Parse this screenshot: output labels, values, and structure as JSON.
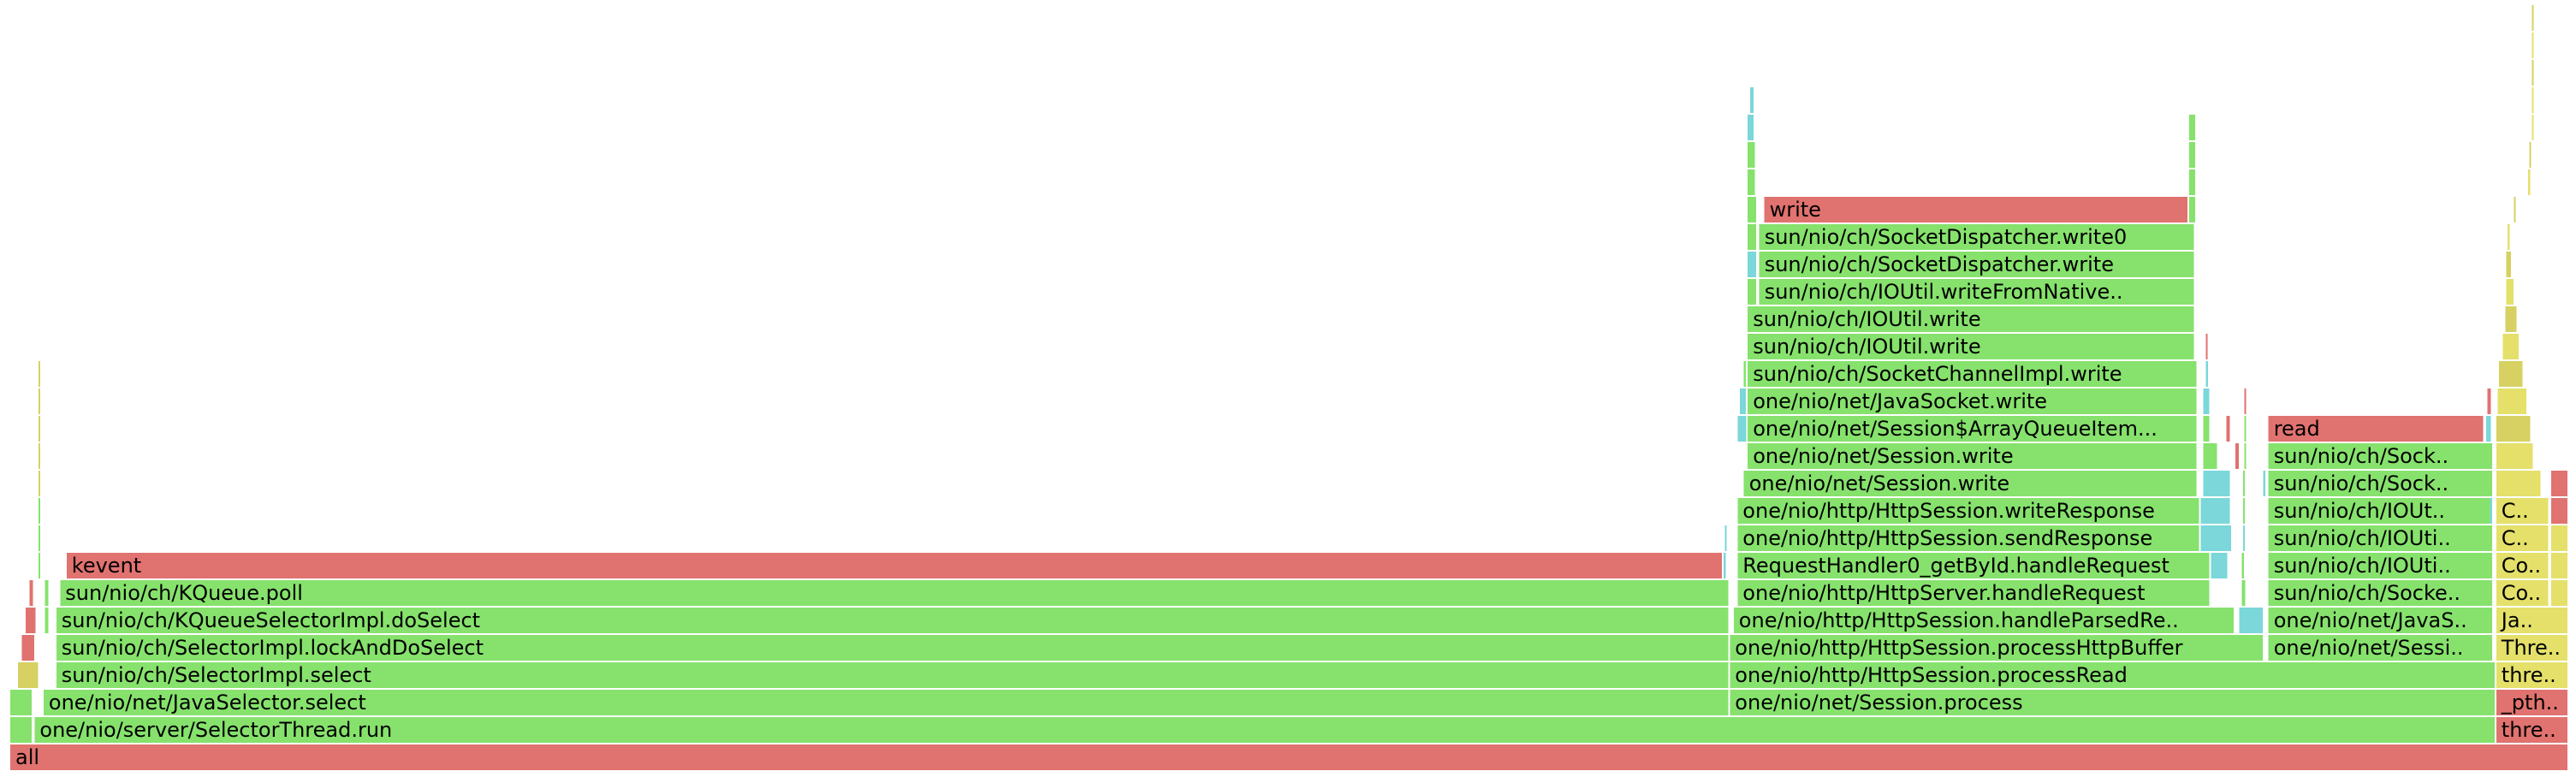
{
  "chart_data": {
    "type": "flamegraph",
    "units": "percent of total samples",
    "palette": {
      "native": "#e0726f",
      "java": "#86e26c",
      "inlined": "#8fe678",
      "kernel": "#7bd7d9",
      "c1": "#d6d162",
      "interpreted": "#e4e06a"
    },
    "frames": [
      {
        "name": "all",
        "depth": 0,
        "start": 0.0,
        "width": 100.0,
        "kind": "native"
      },
      {
        "name": "one/nio/server/SelectorThread.run",
        "depth": 1,
        "start": 0.95,
        "width": 96.2,
        "kind": "java"
      },
      {
        "name": "thre..",
        "depth": 1,
        "start": 97.15,
        "width": 2.85,
        "kind": "native"
      },
      {
        "name": "one/nio/net/JavaSelector.select",
        "depth": 2,
        "start": 1.3,
        "width": 65.9,
        "kind": "java"
      },
      {
        "name": "one/nio/net/Session.process",
        "depth": 2,
        "start": 67.2,
        "width": 29.95,
        "kind": "java"
      },
      {
        "name": "_pth..",
        "depth": 2,
        "start": 97.15,
        "width": 2.85,
        "kind": "native"
      },
      {
        "name": "sun/nio/ch/SelectorImpl.select",
        "depth": 3,
        "start": 1.8,
        "width": 65.4,
        "kind": "java"
      },
      {
        "name": "one/nio/http/HttpSession.processRead",
        "depth": 3,
        "start": 67.2,
        "width": 29.95,
        "kind": "java"
      },
      {
        "name": "thre..",
        "depth": 3,
        "start": 97.15,
        "width": 2.85,
        "kind": "interpreted"
      },
      {
        "name": "sun/nio/ch/SelectorImpl.lockAndDoSelect",
        "depth": 4,
        "start": 1.8,
        "width": 65.4,
        "kind": "java"
      },
      {
        "name": "one/nio/http/HttpSession.processHttpBuffer",
        "depth": 4,
        "start": 67.2,
        "width": 20.9,
        "kind": "java"
      },
      {
        "name": "one/nio/net/Sessi..",
        "depth": 4,
        "start": 88.25,
        "width": 8.8,
        "kind": "java"
      },
      {
        "name": "Thre..",
        "depth": 4,
        "start": 97.15,
        "width": 2.85,
        "kind": "interpreted"
      },
      {
        "name": "sun/nio/ch/KQueueSelectorImpl.doSelect",
        "depth": 5,
        "start": 1.8,
        "width": 65.4,
        "kind": "java"
      },
      {
        "name": "one/nio/http/HttpSession.handleParsedRe..",
        "depth": 5,
        "start": 67.35,
        "width": 19.6,
        "kind": "java"
      },
      {
        "name": "one/nio/net/JavaS..",
        "depth": 5,
        "start": 88.25,
        "width": 8.8,
        "kind": "java"
      },
      {
        "name": "Ja..",
        "depth": 5,
        "start": 97.15,
        "width": 2.85,
        "kind": "interpreted"
      },
      {
        "name": "sun/nio/ch/KQueue.poll",
        "depth": 6,
        "start": 1.95,
        "width": 65.1,
        "kind": "java"
      },
      {
        "name": "one/nio/http/HttpServer.handleRequest",
        "depth": 6,
        "start": 67.5,
        "width": 18.5,
        "kind": "java"
      },
      {
        "name": "sun/nio/ch/Socke..",
        "depth": 6,
        "start": 88.25,
        "width": 8.8,
        "kind": "java"
      },
      {
        "name": "Co..",
        "depth": 6,
        "start": 97.15,
        "width": 2.1,
        "kind": "interpreted"
      },
      {
        "name": "kevent",
        "depth": 7,
        "start": 2.2,
        "width": 64.75,
        "kind": "native"
      },
      {
        "name": "RequestHandler0_getById.handleRequest",
        "depth": 7,
        "start": 67.5,
        "width": 18.5,
        "kind": "java"
      },
      {
        "name": "sun/nio/ch/IOUti..",
        "depth": 7,
        "start": 88.25,
        "width": 8.8,
        "kind": "java"
      },
      {
        "name": "Co..",
        "depth": 7,
        "start": 97.15,
        "width": 2.1,
        "kind": "interpreted"
      },
      {
        "name": "one/nio/http/HttpSession.sendResponse",
        "depth": 8,
        "start": 67.5,
        "width": 18.1,
        "kind": "java"
      },
      {
        "name": "sun/nio/ch/IOUti..",
        "depth": 8,
        "start": 88.25,
        "width": 8.8,
        "kind": "java"
      },
      {
        "name": "C..",
        "depth": 8,
        "start": 97.15,
        "width": 2.1,
        "kind": "interpreted"
      },
      {
        "name": "one/nio/http/HttpSession.writeResponse",
        "depth": 9,
        "start": 67.5,
        "width": 18.1,
        "kind": "java"
      },
      {
        "name": "sun/nio/ch/IOUt..",
        "depth": 9,
        "start": 88.25,
        "width": 8.8,
        "kind": "java"
      },
      {
        "name": "C..",
        "depth": 9,
        "start": 97.15,
        "width": 2.1,
        "kind": "interpreted"
      },
      {
        "name": "one/nio/net/Session.write",
        "depth": 10,
        "start": 67.75,
        "width": 17.75,
        "kind": "java"
      },
      {
        "name": "sun/nio/ch/Sock..",
        "depth": 10,
        "start": 88.25,
        "width": 8.8,
        "kind": "java"
      },
      {
        "name": "one/nio/net/Session.write",
        "depth": 11,
        "start": 67.9,
        "width": 17.6,
        "kind": "java"
      },
      {
        "name": "sun/nio/ch/Sock..",
        "depth": 11,
        "start": 88.25,
        "width": 8.8,
        "kind": "java"
      },
      {
        "name": "one/nio/net/Session$ArrayQueueItem...",
        "depth": 12,
        "start": 67.9,
        "width": 17.6,
        "kind": "java"
      },
      {
        "name": "read",
        "depth": 12,
        "start": 88.25,
        "width": 8.45,
        "kind": "native"
      },
      {
        "name": "one/nio/net/JavaSocket.write",
        "depth": 13,
        "start": 67.9,
        "width": 17.6,
        "kind": "java"
      },
      {
        "name": "sun/nio/ch/SocketChannelImpl.write",
        "depth": 14,
        "start": 67.9,
        "width": 17.6,
        "kind": "java"
      },
      {
        "name": "sun/nio/ch/IOUtil.write",
        "depth": 15,
        "start": 67.9,
        "width": 17.5,
        "kind": "java"
      },
      {
        "name": "sun/nio/ch/IOUtil.write",
        "depth": 16,
        "start": 67.9,
        "width": 17.5,
        "kind": "java"
      },
      {
        "name": "sun/nio/ch/IOUtil.writeFromNative..",
        "depth": 17,
        "start": 68.35,
        "width": 17.05,
        "kind": "java"
      },
      {
        "name": "sun/nio/ch/SocketDispatcher.write",
        "depth": 18,
        "start": 68.35,
        "width": 17.05,
        "kind": "java"
      },
      {
        "name": "sun/nio/ch/SocketDispatcher.write0",
        "depth": 19,
        "start": 68.35,
        "width": 17.05,
        "kind": "java"
      },
      {
        "name": "write",
        "depth": 20,
        "start": 68.55,
        "width": 16.6,
        "kind": "native"
      },
      {
        "name": "",
        "depth": 1,
        "start": 0.0,
        "width": 0.9,
        "kind": "java"
      },
      {
        "name": "",
        "depth": 2,
        "start": 0.0,
        "width": 0.9,
        "kind": "java"
      },
      {
        "name": "",
        "depth": 3,
        "start": 0.3,
        "width": 0.85,
        "kind": "c1"
      },
      {
        "name": "",
        "depth": 4,
        "start": 0.45,
        "width": 0.55,
        "kind": "native"
      },
      {
        "name": "",
        "depth": 5,
        "start": 0.6,
        "width": 0.45,
        "kind": "native"
      },
      {
        "name": "",
        "depth": 6,
        "start": 0.75,
        "width": 0.2,
        "kind": "native"
      },
      {
        "name": "",
        "depth": 7,
        "start": 1.1,
        "width": 0.1,
        "kind": "java"
      },
      {
        "name": "",
        "depth": 8,
        "start": 1.1,
        "width": 0.1,
        "kind": "java"
      },
      {
        "name": "",
        "depth": 9,
        "start": 1.1,
        "width": 0.1,
        "kind": "java"
      },
      {
        "name": "",
        "depth": 10,
        "start": 1.1,
        "width": 0.1,
        "kind": "c1"
      },
      {
        "name": "",
        "depth": 11,
        "start": 1.1,
        "width": 0.1,
        "kind": "c1"
      },
      {
        "name": "",
        "depth": 12,
        "start": 1.1,
        "width": 0.08,
        "kind": "c1"
      },
      {
        "name": "",
        "depth": 13,
        "start": 1.1,
        "width": 0.08,
        "kind": "c1"
      },
      {
        "name": "",
        "depth": 14,
        "start": 1.1,
        "width": 0.06,
        "kind": "c1"
      },
      {
        "name": "",
        "depth": 6,
        "start": 1.35,
        "width": 0.2,
        "kind": "java"
      },
      {
        "name": "",
        "depth": 5,
        "start": 1.35,
        "width": 0.2,
        "kind": "java"
      },
      {
        "name": "",
        "depth": 7,
        "start": 66.95,
        "width": 0.15,
        "kind": "kernel"
      },
      {
        "name": "",
        "depth": 8,
        "start": 67.0,
        "width": 0.1,
        "kind": "kernel"
      },
      {
        "name": "",
        "depth": 6,
        "start": 66.95,
        "width": 0.25,
        "kind": "java"
      },
      {
        "name": "",
        "depth": 12,
        "start": 67.5,
        "width": 0.4,
        "kind": "kernel"
      },
      {
        "name": "",
        "depth": 13,
        "start": 67.6,
        "width": 0.3,
        "kind": "kernel"
      },
      {
        "name": "",
        "depth": 14,
        "start": 67.75,
        "width": 0.15,
        "kind": "java"
      },
      {
        "name": "",
        "depth": 15,
        "start": 67.9,
        "width": 0.0,
        "kind": "java"
      },
      {
        "name": "",
        "depth": 17,
        "start": 67.9,
        "width": 0.4,
        "kind": "java"
      },
      {
        "name": "",
        "depth": 18,
        "start": 67.9,
        "width": 0.4,
        "kind": "kernel"
      },
      {
        "name": "",
        "depth": 19,
        "start": 67.9,
        "width": 0.4,
        "kind": "java"
      },
      {
        "name": "",
        "depth": 20,
        "start": 67.9,
        "width": 0.4,
        "kind": "java"
      },
      {
        "name": "",
        "depth": 21,
        "start": 67.9,
        "width": 0.35,
        "kind": "java"
      },
      {
        "name": "",
        "depth": 22,
        "start": 67.9,
        "width": 0.35,
        "kind": "java"
      },
      {
        "name": "",
        "depth": 23,
        "start": 67.9,
        "width": 0.3,
        "kind": "kernel"
      },
      {
        "name": "",
        "depth": 24,
        "start": 68.0,
        "width": 0.2,
        "kind": "kernel"
      },
      {
        "name": "",
        "depth": 20,
        "start": 85.15,
        "width": 0.3,
        "kind": "java"
      },
      {
        "name": "",
        "depth": 21,
        "start": 85.15,
        "width": 0.3,
        "kind": "java"
      },
      {
        "name": "",
        "depth": 22,
        "start": 85.15,
        "width": 0.3,
        "kind": "java"
      },
      {
        "name": "",
        "depth": 23,
        "start": 85.15,
        "width": 0.3,
        "kind": "java"
      },
      {
        "name": "",
        "depth": 7,
        "start": 86.0,
        "width": 0.7,
        "kind": "kernel"
      },
      {
        "name": "",
        "depth": 8,
        "start": 85.6,
        "width": 1.25,
        "kind": "kernel"
      },
      {
        "name": "",
        "depth": 9,
        "start": 85.6,
        "width": 1.2,
        "kind": "kernel"
      },
      {
        "name": "",
        "depth": 10,
        "start": 85.7,
        "width": 1.1,
        "kind": "kernel"
      },
      {
        "name": "",
        "depth": 11,
        "start": 85.7,
        "width": 0.6,
        "kind": "java"
      },
      {
        "name": "",
        "depth": 12,
        "start": 85.7,
        "width": 0.3,
        "kind": "java"
      },
      {
        "name": "",
        "depth": 13,
        "start": 85.7,
        "width": 0.3,
        "kind": "kernel"
      },
      {
        "name": "",
        "depth": 14,
        "start": 85.8,
        "width": 0.15,
        "kind": "kernel"
      },
      {
        "name": "",
        "depth": 15,
        "start": 85.8,
        "width": 0.1,
        "kind": "native"
      },
      {
        "name": "",
        "depth": 12,
        "start": 86.6,
        "width": 0.2,
        "kind": "native"
      },
      {
        "name": "",
        "depth": 11,
        "start": 86.95,
        "width": 0.2,
        "kind": "native"
      },
      {
        "name": "",
        "depth": 5,
        "start": 87.1,
        "width": 1.0,
        "kind": "kernel"
      },
      {
        "name": "",
        "depth": 6,
        "start": 87.2,
        "width": 0.2,
        "kind": "java"
      },
      {
        "name": "",
        "depth": 7,
        "start": 87.2,
        "width": 0.15,
        "kind": "java"
      },
      {
        "name": "",
        "depth": 8,
        "start": 87.25,
        "width": 0.1,
        "kind": "kernel"
      },
      {
        "name": "",
        "depth": 9,
        "start": 87.25,
        "width": 0.1,
        "kind": "java"
      },
      {
        "name": "",
        "depth": 10,
        "start": 87.25,
        "width": 0.1,
        "kind": "java"
      },
      {
        "name": "",
        "depth": 11,
        "start": 87.3,
        "width": 0.08,
        "kind": "java"
      },
      {
        "name": "",
        "depth": 12,
        "start": 87.3,
        "width": 0.08,
        "kind": "java"
      },
      {
        "name": "",
        "depth": 13,
        "start": 87.3,
        "width": 0.08,
        "kind": "native"
      },
      {
        "name": "",
        "depth": 10,
        "start": 88.05,
        "width": 0.15,
        "kind": "kernel"
      },
      {
        "name": "",
        "depth": 12,
        "start": 96.75,
        "width": 0.25,
        "kind": "kernel"
      },
      {
        "name": "",
        "depth": 13,
        "start": 96.8,
        "width": 0.2,
        "kind": "native"
      },
      {
        "name": "",
        "depth": 9,
        "start": 96.9,
        "width": 0.15,
        "kind": "kernel"
      },
      {
        "name": "",
        "depth": 9,
        "start": 99.3,
        "width": 0.7,
        "kind": "native"
      },
      {
        "name": "",
        "depth": 10,
        "start": 99.3,
        "width": 0.7,
        "kind": "native"
      },
      {
        "name": "",
        "depth": 8,
        "start": 99.3,
        "width": 0.7,
        "kind": "interpreted"
      },
      {
        "name": "",
        "depth": 7,
        "start": 99.3,
        "width": 0.7,
        "kind": "interpreted"
      },
      {
        "name": "",
        "depth": 6,
        "start": 99.3,
        "width": 0.7,
        "kind": "interpreted"
      },
      {
        "name": "",
        "depth": 10,
        "start": 97.15,
        "width": 1.8,
        "kind": "interpreted"
      },
      {
        "name": "",
        "depth": 11,
        "start": 97.15,
        "width": 1.5,
        "kind": "interpreted"
      },
      {
        "name": "",
        "depth": 12,
        "start": 97.15,
        "width": 1.4,
        "kind": "c1"
      },
      {
        "name": "",
        "depth": 13,
        "start": 97.2,
        "width": 1.2,
        "kind": "interpreted"
      },
      {
        "name": "",
        "depth": 14,
        "start": 97.25,
        "width": 1.0,
        "kind": "c1"
      },
      {
        "name": "",
        "depth": 15,
        "start": 97.4,
        "width": 0.7,
        "kind": "interpreted"
      },
      {
        "name": "",
        "depth": 16,
        "start": 97.5,
        "width": 0.5,
        "kind": "c1"
      },
      {
        "name": "",
        "depth": 17,
        "start": 97.55,
        "width": 0.35,
        "kind": "interpreted"
      },
      {
        "name": "",
        "depth": 18,
        "start": 97.55,
        "width": 0.25,
        "kind": "c1"
      },
      {
        "name": "",
        "depth": 19,
        "start": 97.6,
        "width": 0.15,
        "kind": "interpreted"
      },
      {
        "name": "",
        "depth": 20,
        "start": 97.85,
        "width": 0.1,
        "kind": "c1"
      },
      {
        "name": "",
        "depth": 21,
        "start": 98.4,
        "width": 0.15,
        "kind": "interpreted"
      },
      {
        "name": "",
        "depth": 22,
        "start": 98.45,
        "width": 0.1,
        "kind": "c1"
      },
      {
        "name": "",
        "depth": 23,
        "start": 98.55,
        "width": 0.1,
        "kind": "interpreted"
      },
      {
        "name": "",
        "depth": 24,
        "start": 98.55,
        "width": 0.08,
        "kind": "interpreted"
      },
      {
        "name": "",
        "depth": 25,
        "start": 98.55,
        "width": 0.08,
        "kind": "c1"
      },
      {
        "name": "",
        "depth": 26,
        "start": 98.55,
        "width": 0.06,
        "kind": "interpreted"
      },
      {
        "name": "",
        "depth": 27,
        "start": 98.55,
        "width": 0.05,
        "kind": "c1"
      }
    ]
  }
}
